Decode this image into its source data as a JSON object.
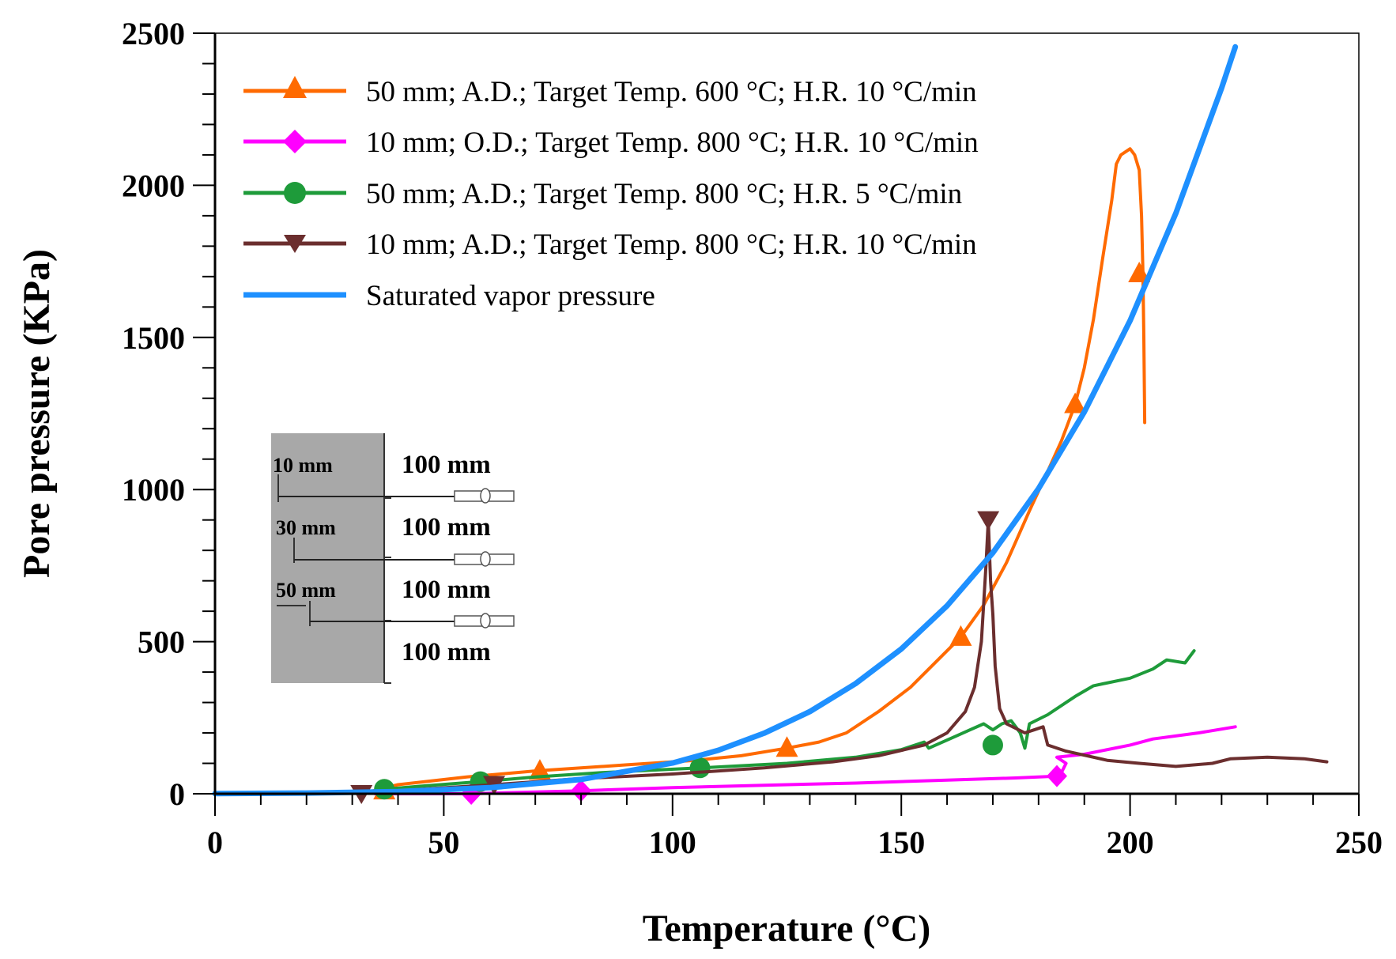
{
  "chart_data": {
    "type": "line",
    "title": "",
    "xlabel": "Temperature (°C)",
    "ylabel": "Pore pressure (KPa)",
    "xlim": [
      0,
      250
    ],
    "ylim": [
      0,
      2500
    ],
    "xticks": [
      0,
      50,
      100,
      150,
      200,
      250
    ],
    "yticks": [
      0,
      500,
      1000,
      1500,
      2000,
      2500
    ],
    "xtick_labels": [
      "0",
      "50",
      "100",
      "150",
      "200",
      "250"
    ],
    "ytick_labels": [
      "0",
      "500",
      "1000",
      "1500",
      "2000",
      "2500"
    ],
    "grid": false,
    "legend_position": "top-left",
    "series": [
      {
        "name": "50 mm; A.D.; Target Temp. 600 °C; H.R. 10 °C/min",
        "color": "#FF6A00",
        "marker": "triangle-up",
        "points": [
          [
            32,
            0
          ],
          [
            40,
            30
          ],
          [
            55,
            55
          ],
          [
            70,
            75
          ],
          [
            90,
            95
          ],
          [
            105,
            110
          ],
          [
            115,
            125
          ],
          [
            125,
            150
          ],
          [
            132,
            170
          ],
          [
            138,
            200
          ],
          [
            145,
            270
          ],
          [
            152,
            350
          ],
          [
            158,
            440
          ],
          [
            163,
            515
          ],
          [
            168,
            620
          ],
          [
            173,
            760
          ],
          [
            178,
            930
          ],
          [
            182,
            1060
          ],
          [
            185,
            1160
          ],
          [
            188,
            1280
          ],
          [
            190,
            1400
          ],
          [
            192,
            1560
          ],
          [
            194,
            1760
          ],
          [
            196,
            1950
          ],
          [
            197,
            2070
          ],
          [
            198,
            2100
          ],
          [
            199,
            2110
          ],
          [
            200,
            2120
          ],
          [
            201,
            2100
          ],
          [
            202,
            2050
          ],
          [
            202.5,
            1900
          ],
          [
            202.8,
            1720
          ],
          [
            203,
            1500
          ],
          [
            203.2,
            1220
          ]
        ],
        "markers": [
          [
            37,
            10
          ],
          [
            71,
            75
          ],
          [
            125,
            150
          ],
          [
            163,
            515
          ],
          [
            188,
            1280
          ],
          [
            202,
            1710
          ]
        ]
      },
      {
        "name": "10 mm; O.D.; Target Temp. 800 °C; H.R. 10 °C/min",
        "color": "#FF00FF",
        "marker": "diamond",
        "points": [
          [
            35,
            0
          ],
          [
            56,
            0
          ],
          [
            80,
            10
          ],
          [
            100,
            20
          ],
          [
            120,
            28
          ],
          [
            140,
            35
          ],
          [
            160,
            45
          ],
          [
            175,
            52
          ],
          [
            184,
            58
          ],
          [
            185,
            70
          ],
          [
            186,
            100
          ],
          [
            184,
            120
          ],
          [
            190,
            130
          ],
          [
            200,
            160
          ],
          [
            205,
            180
          ],
          [
            215,
            200
          ],
          [
            223,
            220
          ]
        ],
        "markers": [
          [
            56,
            0
          ],
          [
            80,
            10
          ],
          [
            184,
            58
          ]
        ]
      },
      {
        "name": "50 mm; A.D.; Target Temp. 800 °C; H.R. 5 °C/min",
        "color": "#1E9B3A",
        "marker": "circle",
        "points": [
          [
            33,
            5
          ],
          [
            37,
            15
          ],
          [
            45,
            25
          ],
          [
            58,
            40
          ],
          [
            70,
            55
          ],
          [
            85,
            70
          ],
          [
            106,
            85
          ],
          [
            125,
            100
          ],
          [
            140,
            120
          ],
          [
            150,
            145
          ],
          [
            155,
            170
          ],
          [
            156,
            150
          ],
          [
            162,
            190
          ],
          [
            165,
            210
          ],
          [
            168,
            230
          ],
          [
            170,
            210
          ],
          [
            172,
            230
          ],
          [
            174,
            240
          ],
          [
            176,
            200
          ],
          [
            177,
            150
          ],
          [
            178,
            230
          ],
          [
            182,
            260
          ],
          [
            188,
            320
          ],
          [
            192,
            355
          ],
          [
            200,
            380
          ],
          [
            205,
            410
          ],
          [
            208,
            440
          ],
          [
            212,
            430
          ],
          [
            214,
            470
          ]
        ],
        "markers": [
          [
            37,
            15
          ],
          [
            58,
            40
          ],
          [
            106,
            85
          ],
          [
            170,
            160
          ]
        ]
      },
      {
        "name": "10 mm; A.D.; Target Temp. 800 °C; H.R. 10 °C/min",
        "color": "#6B2E2E",
        "marker": "triangle-down",
        "points": [
          [
            32,
            0
          ],
          [
            45,
            15
          ],
          [
            61,
            30
          ],
          [
            80,
            50
          ],
          [
            100,
            65
          ],
          [
            120,
            85
          ],
          [
            135,
            105
          ],
          [
            145,
            125
          ],
          [
            155,
            160
          ],
          [
            160,
            200
          ],
          [
            164,
            270
          ],
          [
            166,
            350
          ],
          [
            167.5,
            500
          ],
          [
            168.5,
            750
          ],
          [
            169,
            900
          ],
          [
            169.5,
            700
          ],
          [
            170,
            590
          ],
          [
            170.5,
            420
          ],
          [
            171.5,
            280
          ],
          [
            173,
            230
          ],
          [
            177,
            200
          ],
          [
            179,
            210
          ],
          [
            181,
            220
          ],
          [
            182,
            160
          ],
          [
            186,
            140
          ],
          [
            195,
            110
          ],
          [
            202,
            100
          ],
          [
            210,
            90
          ],
          [
            218,
            100
          ],
          [
            222,
            115
          ],
          [
            230,
            120
          ],
          [
            238,
            115
          ],
          [
            243,
            105
          ]
        ],
        "markers": [
          [
            32,
            0
          ],
          [
            61,
            30
          ],
          [
            169,
            900
          ]
        ]
      },
      {
        "name": "Saturated vapor pressure",
        "color": "#1E90FF",
        "marker": "none",
        "points": [
          [
            0,
            0.6
          ],
          [
            20,
            2.3
          ],
          [
            40,
            7.4
          ],
          [
            60,
            20
          ],
          [
            80,
            47
          ],
          [
            100,
            101
          ],
          [
            110,
            143
          ],
          [
            120,
            199
          ],
          [
            130,
            270
          ],
          [
            140,
            362
          ],
          [
            150,
            476
          ],
          [
            160,
            618
          ],
          [
            170,
            792
          ],
          [
            180,
            1003
          ],
          [
            190,
            1255
          ],
          [
            200,
            1555
          ],
          [
            210,
            1908
          ],
          [
            220,
            2320
          ],
          [
            223,
            2455
          ]
        ],
        "markers": []
      }
    ],
    "inset": {
      "labels": [
        "10 mm",
        "30 mm",
        "50 mm"
      ],
      "dimensions": [
        "100 mm",
        "100 mm",
        "100 mm",
        "100 mm"
      ]
    }
  }
}
